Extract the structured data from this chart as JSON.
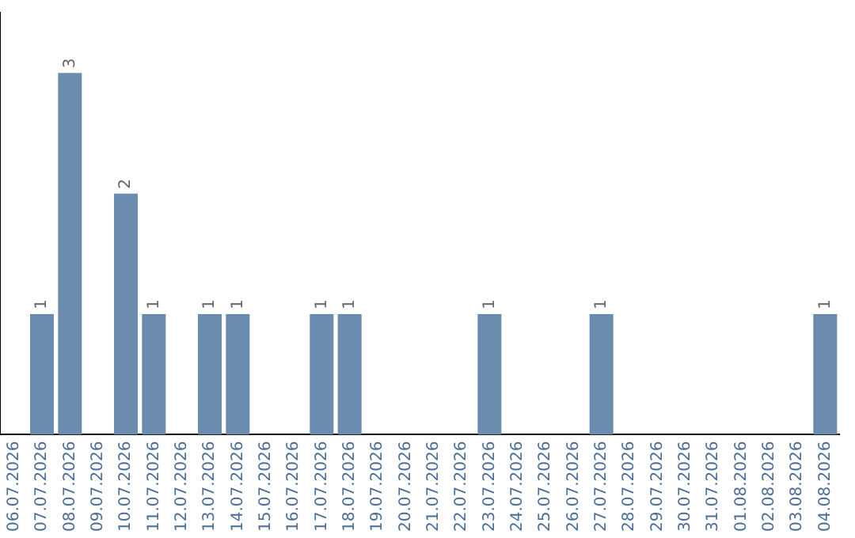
{
  "chart_data": {
    "type": "bar",
    "categories": [
      "06.07.2026",
      "07.07.2026",
      "08.07.2026",
      "09.07.2026",
      "10.07.2026",
      "11.07.2026",
      "12.07.2026",
      "13.07.2026",
      "14.07.2026",
      "15.07.2026",
      "16.07.2026",
      "17.07.2026",
      "18.07.2026",
      "19.07.2026",
      "20.07.2026",
      "21.07.2026",
      "22.07.2026",
      "23.07.2026",
      "24.07.2026",
      "25.07.2026",
      "26.07.2026",
      "27.07.2026",
      "28.07.2026",
      "29.07.2026",
      "30.07.2026",
      "31.07.2026",
      "01.08.2026",
      "02.08.2026",
      "03.08.2026",
      "04.08.2026"
    ],
    "values": [
      0,
      1,
      3,
      0,
      2,
      1,
      0,
      1,
      1,
      0,
      0,
      1,
      1,
      0,
      0,
      0,
      0,
      1,
      0,
      0,
      0,
      1,
      0,
      0,
      0,
      0,
      0,
      0,
      0,
      1
    ],
    "value_labels": [
      null,
      "1",
      "3",
      null,
      "2",
      "1",
      null,
      "1",
      "1",
      null,
      null,
      "1",
      "1",
      null,
      null,
      null,
      null,
      "1",
      null,
      null,
      null,
      "1",
      null,
      null,
      null,
      null,
      null,
      null,
      null,
      "1"
    ],
    "color": "#6a8caf",
    "tick_labels": "x",
    "grid": false,
    "legend": false
  }
}
